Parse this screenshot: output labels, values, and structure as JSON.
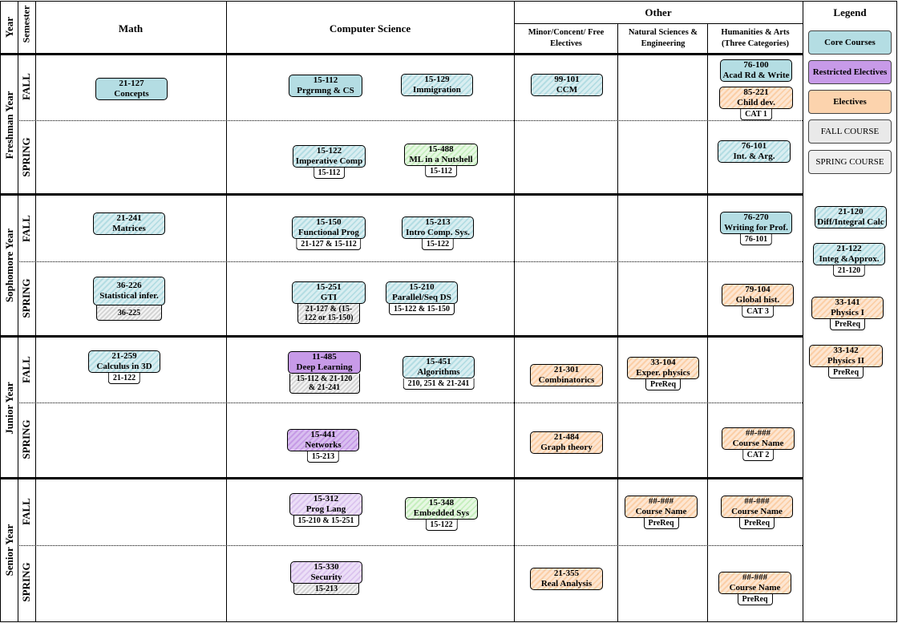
{
  "header": {
    "year": "Year",
    "semester": "Semester",
    "math": "Math",
    "cs": "Computer Science",
    "other": "Other",
    "minor": "Minor/Concent/ Free Electives",
    "natsci": "Natural Sciences & Engineering",
    "humanities": "Humanities & Arts (Three Categories)",
    "legend": "Legend"
  },
  "years": [
    "Freshman Year",
    "Sophomore Year",
    "Junior Year",
    "Senior Year"
  ],
  "semesters": [
    "FALL",
    "SPRING"
  ],
  "legend": {
    "items": [
      "Core Courses",
      "Restricted Electives",
      "Electives",
      "FALL COURSE",
      "SPRING COURSE"
    ],
    "courses": [
      {
        "code": "21-120",
        "name": "Diff/Integral Calc"
      },
      {
        "code": "21-122",
        "name": "Integ &Approx.",
        "prereq": "21-120"
      },
      {
        "code": "33-141",
        "name": "Physics I",
        "prereq": "PreReq"
      },
      {
        "code": "33-142",
        "name": "Physics II",
        "prereq": "PreReq"
      }
    ]
  },
  "courses": [
    {
      "code": "21-127",
      "name": "Concepts"
    },
    {
      "code": "15-112",
      "name": "Prgrmng & CS"
    },
    {
      "code": "15-129",
      "name": "Immigration"
    },
    {
      "code": "99-101",
      "name": "CCM"
    },
    {
      "code": "76-100",
      "name": "Acad Rd & Write"
    },
    {
      "code": "85-221",
      "name": "Child dev.",
      "prereq": "CAT 1"
    },
    {
      "code": "15-122",
      "name": "Imperative Comp",
      "prereq": "15-112"
    },
    {
      "code": "15-488",
      "name": "ML in a Nutshell",
      "prereq": "15-112"
    },
    {
      "code": "76-101",
      "name": "Int. & Arg."
    },
    {
      "code": "21-241",
      "name": "Matrices"
    },
    {
      "code": "15-150",
      "name": "Functional Prog",
      "prereq": "21-127 & 15-112"
    },
    {
      "code": "15-213",
      "name": "Intro Comp. Sys.",
      "prereq": "15-122"
    },
    {
      "code": "76-270",
      "name": "Writing for Prof.",
      "prereq": "76-101"
    },
    {
      "code": "36-226",
      "name": "Statistical infer.",
      "prereq": "36-225"
    },
    {
      "code": "15-251",
      "name": "GTI",
      "prereq": "21-127 & (15-122 or 15-150)"
    },
    {
      "code": "15-210",
      "name": "Parallel/Seq DS",
      "prereq": "15-122 & 15-150"
    },
    {
      "code": "79-104",
      "name": "Global hist.",
      "prereq": "CAT 3"
    },
    {
      "code": "21-259",
      "name": "Calculus in 3D",
      "prereq": "21-122"
    },
    {
      "code": "11-485",
      "name": "Deep Learning",
      "prereq": "15-112 & 21-120 & 21-241"
    },
    {
      "code": "15-451",
      "name": "Algorithms",
      "prereq": "210, 251 & 21-241"
    },
    {
      "code": "21-301",
      "name": "Combinatorics"
    },
    {
      "code": "33-104",
      "name": "Exper. physics",
      "prereq": "PreReq"
    },
    {
      "code": "15-441",
      "name": "Networks",
      "prereq": "15-213"
    },
    {
      "code": "21-484",
      "name": "Graph theory"
    },
    {
      "code": "##-###",
      "name": "Course Name",
      "prereq": "CAT 2"
    },
    {
      "code": "15-312",
      "name": "Prog Lang",
      "prereq": "15-210 & 15-251"
    },
    {
      "code": "15-348",
      "name": "Embedded Sys",
      "prereq": "15-122"
    },
    {
      "code": "##-###",
      "name": "Course Name",
      "prereq": "PreReq"
    },
    {
      "code": "##-###",
      "name": "Course Name",
      "prereq": "PreReq"
    },
    {
      "code": "15-330",
      "name": "Security",
      "prereq": "15-213"
    },
    {
      "code": "21-355",
      "name": "Real Analysis"
    },
    {
      "code": "##-###",
      "name": "Course Name",
      "prereq": "PreReq"
    }
  ]
}
